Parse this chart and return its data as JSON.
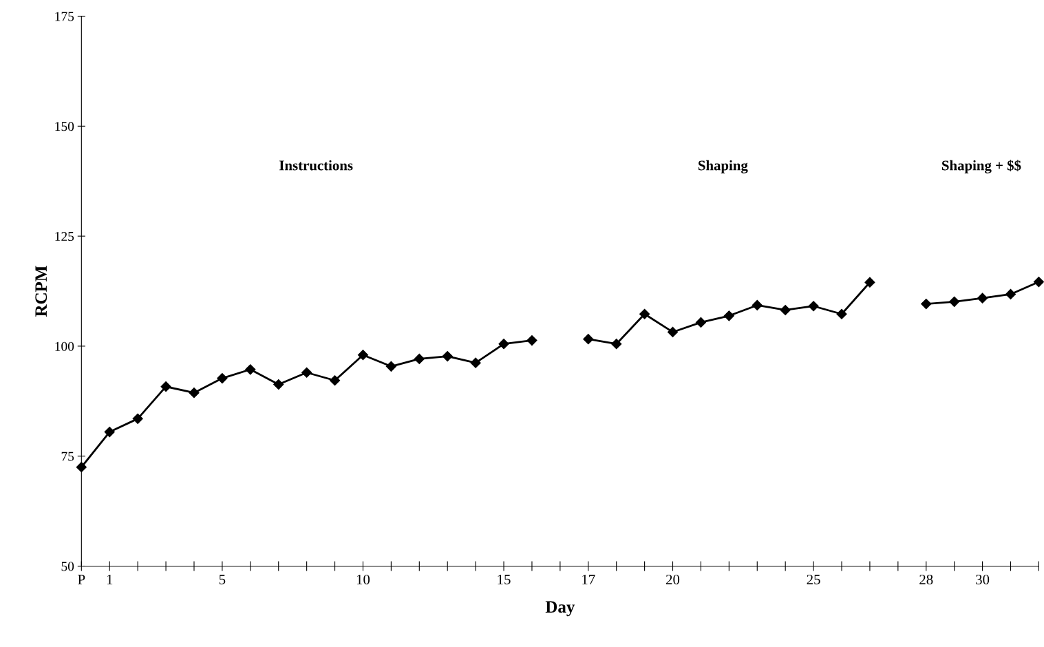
{
  "chart_data": {
    "type": "line",
    "xlabel": "Day",
    "ylabel": "RCPM",
    "categories": [
      "P",
      "1",
      null,
      null,
      null,
      "5",
      null,
      null,
      null,
      null,
      "10",
      null,
      null,
      null,
      null,
      "15",
      null,
      null,
      "17",
      null,
      null,
      "20",
      null,
      null,
      null,
      null,
      "25",
      null,
      null,
      null,
      "28",
      null,
      "30",
      null,
      null
    ],
    "series": [
      {
        "color": "#000000",
        "values": [
          72.5,
          80.5,
          83.5,
          90.8,
          89.4,
          92.7,
          94.7,
          91.3,
          94.0,
          92.2,
          98.0,
          95.4,
          97.1,
          97.7,
          96.2,
          100.5,
          101.3,
          null,
          101.6,
          100.5,
          107.3,
          103.2,
          105.4,
          106.9,
          109.3,
          108.2,
          109.1,
          107.3,
          114.5,
          null,
          109.6,
          110.1,
          110.9,
          111.8,
          114.6
        ]
      }
    ],
    "ylim": [
      50,
      175
    ],
    "yticks": [
      50,
      75,
      100,
      125,
      150,
      175
    ],
    "annotations": [
      "Instructions",
      "Shaping",
      "Shaping + $$"
    ],
    "marker": "diamond",
    "line_style": "solid"
  }
}
